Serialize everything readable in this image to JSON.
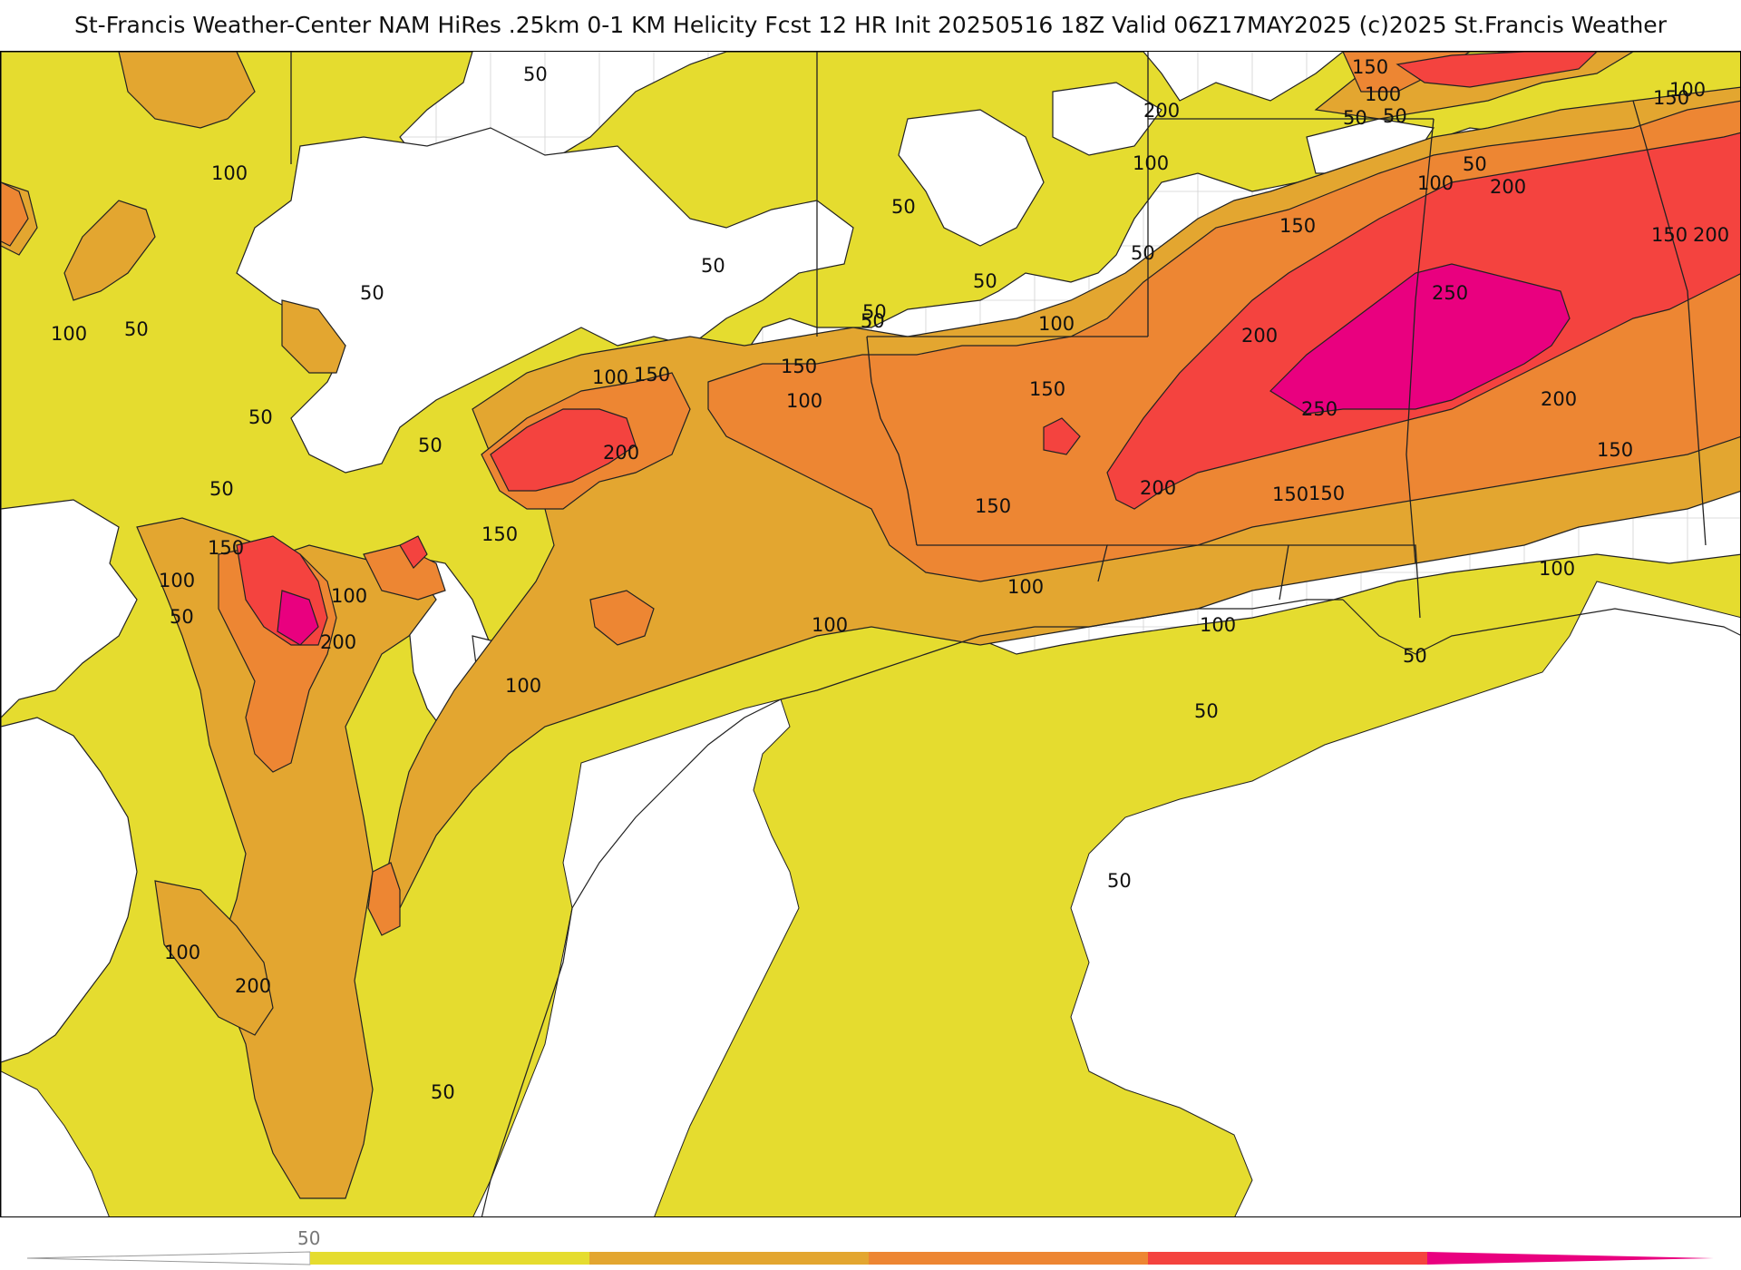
{
  "title": "St-Francis Weather-Center NAM HiRes .25km 0-1 KM Helicity Fcst 12 HR Init 20250516 18Z  Valid 06Z17MAY2025    (c)2025 St.Francis Weather",
  "colors": {
    "c50": "#e5dc2f",
    "c100": "#e3a630",
    "c150": "#ed8633",
    "c200": "#f4433f",
    "c250": "#e9007f",
    "land_bg": "#ffffff",
    "border": "#222222",
    "county": "#cccccc"
  },
  "contour_labels": [
    {
      "id": "l1",
      "text": "50"
    },
    {
      "id": "l2",
      "text": "100"
    },
    {
      "id": "l3",
      "text": "50"
    },
    {
      "id": "l4",
      "text": "100"
    },
    {
      "id": "l5",
      "text": "50"
    },
    {
      "id": "l6",
      "text": "50"
    },
    {
      "id": "l7",
      "text": "50"
    },
    {
      "id": "l8",
      "text": "50"
    },
    {
      "id": "l9",
      "text": "50"
    },
    {
      "id": "l10",
      "text": "100"
    },
    {
      "id": "l11",
      "text": "150"
    },
    {
      "id": "l12",
      "text": "200"
    },
    {
      "id": "l13",
      "text": "150"
    },
    {
      "id": "l14",
      "text": "150"
    },
    {
      "id": "l15",
      "text": "100"
    },
    {
      "id": "l16",
      "text": "50"
    },
    {
      "id": "l17",
      "text": "150"
    },
    {
      "id": "l18",
      "text": "100"
    },
    {
      "id": "l19",
      "text": "50"
    },
    {
      "id": "l20",
      "text": "100"
    },
    {
      "id": "l21",
      "text": "200"
    },
    {
      "id": "l22",
      "text": "100"
    },
    {
      "id": "l23",
      "text": "100"
    },
    {
      "id": "l24",
      "text": "150"
    },
    {
      "id": "l25",
      "text": "150"
    },
    {
      "id": "l26",
      "text": "100"
    },
    {
      "id": "l27",
      "text": "100"
    },
    {
      "id": "l28",
      "text": "100"
    },
    {
      "id": "l29",
      "text": "150"
    },
    {
      "id": "l30",
      "text": "200"
    },
    {
      "id": "l31",
      "text": "250"
    },
    {
      "id": "l32",
      "text": "250"
    },
    {
      "id": "l33",
      "text": "200"
    },
    {
      "id": "l34",
      "text": "150"
    },
    {
      "id": "l35",
      "text": "200"
    },
    {
      "id": "l36",
      "text": "200"
    },
    {
      "id": "l37",
      "text": "150"
    },
    {
      "id": "l38",
      "text": "150"
    },
    {
      "id": "l39",
      "text": "100"
    },
    {
      "id": "l40",
      "text": "100"
    },
    {
      "id": "l41",
      "text": "50"
    },
    {
      "id": "l42",
      "text": "50"
    },
    {
      "id": "l43",
      "text": "50"
    },
    {
      "id": "l44",
      "text": "200"
    },
    {
      "id": "l45",
      "text": "150"
    },
    {
      "id": "l46",
      "text": "100"
    },
    {
      "id": "l47",
      "text": "50"
    },
    {
      "id": "l48",
      "text": "50"
    },
    {
      "id": "l49",
      "text": "100"
    },
    {
      "id": "l50",
      "text": "50"
    },
    {
      "id": "l51",
      "text": "50"
    },
    {
      "id": "l52",
      "text": "50"
    },
    {
      "id": "l53",
      "text": "50"
    },
    {
      "id": "l54",
      "text": "50"
    },
    {
      "id": "l55",
      "text": "50"
    },
    {
      "id": "l56",
      "text": "100"
    },
    {
      "id": "l57",
      "text": "200"
    },
    {
      "id": "l58",
      "text": "150"
    },
    {
      "id": "l59",
      "text": "100"
    },
    {
      "id": "l60",
      "text": "150"
    },
    {
      "id": "l61",
      "text": "200"
    }
  ],
  "colorbar": {
    "label": "50",
    "segments": [
      "50",
      "100",
      "150",
      "200",
      "250"
    ]
  }
}
